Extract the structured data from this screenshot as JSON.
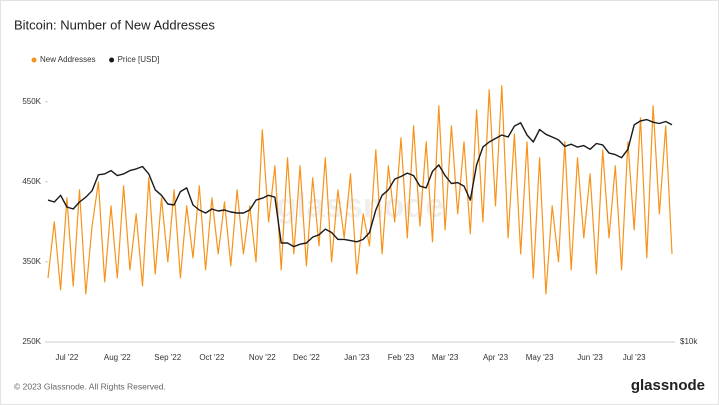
{
  "chart_data": {
    "type": "line",
    "title": "Bitcoin: Number of New Addresses",
    "watermark": "glassnode",
    "categories": [
      null,
      null,
      null,
      "Jul '22",
      null,
      null,
      null,
      null,
      null,
      null,
      null,
      "Aug '22",
      null,
      null,
      null,
      null,
      null,
      null,
      null,
      "Sep '22",
      null,
      null,
      null,
      null,
      null,
      null,
      "Oct '22",
      null,
      null,
      null,
      null,
      null,
      null,
      null,
      "Nov '22",
      null,
      null,
      null,
      null,
      null,
      null,
      "Dec '22",
      null,
      null,
      null,
      null,
      null,
      null,
      null,
      "Jan '23",
      null,
      null,
      null,
      null,
      null,
      null,
      "Feb '23",
      null,
      null,
      null,
      null,
      null,
      null,
      "Mar '23",
      null,
      null,
      null,
      null,
      null,
      null,
      null,
      "Apr '23",
      null,
      null,
      null,
      null,
      null,
      null,
      "May '23",
      null,
      null,
      null,
      null,
      null,
      null,
      null,
      "Jun '23",
      null,
      null,
      null,
      null,
      null,
      null,
      "Jul '23",
      null,
      null,
      null,
      null,
      null,
      null
    ],
    "series": [
      {
        "name": "New Addresses",
        "color": "#f7931a",
        "values": [
          330000,
          400000,
          315000,
          430000,
          320000,
          440000,
          310000,
          395000,
          450000,
          325000,
          420000,
          330000,
          445000,
          340000,
          410000,
          320000,
          455000,
          335000,
          430000,
          350000,
          440000,
          330000,
          420000,
          355000,
          445000,
          340000,
          430000,
          360000,
          425000,
          345000,
          440000,
          360000,
          420000,
          350000,
          515000,
          400000,
          470000,
          340000,
          480000,
          360000,
          470000,
          345000,
          455000,
          370000,
          480000,
          350000,
          440000,
          380000,
          460000,
          335000,
          410000,
          370000,
          490000,
          360000,
          470000,
          400000,
          505000,
          380000,
          520000,
          395000,
          500000,
          375000,
          545000,
          390000,
          520000,
          410000,
          500000,
          385000,
          540000,
          400000,
          565000,
          420000,
          570000,
          380000,
          510000,
          360000,
          500000,
          330000,
          480000,
          310000,
          420000,
          350000,
          500000,
          340000,
          480000,
          380000,
          460000,
          335000,
          490000,
          380000,
          470000,
          340000,
          500000,
          390000,
          530000,
          355000,
          545000,
          410000,
          520000,
          360000
        ]
      },
      {
        "name": "Price [USD]",
        "color": "#1a1a1a",
        "axis": "y2",
        "values": [
          20500,
          20300,
          21000,
          19800,
          19600,
          20300,
          20800,
          21500,
          23300,
          23400,
          23800,
          23200,
          23400,
          23800,
          24000,
          24300,
          23400,
          21600,
          21000,
          20100,
          20000,
          21400,
          21800,
          20000,
          19500,
          19200,
          19600,
          19400,
          19500,
          19300,
          19200,
          19200,
          19500,
          20500,
          20700,
          21000,
          20800,
          16500,
          16500,
          16200,
          16400,
          16500,
          17000,
          17200,
          17700,
          17400,
          16800,
          16800,
          16700,
          16600,
          16800,
          17400,
          19500,
          21000,
          21600,
          22800,
          23100,
          23500,
          23200,
          22000,
          21800,
          23700,
          24500,
          23200,
          22300,
          22400,
          22000,
          20500,
          24500,
          26800,
          27500,
          28000,
          28500,
          28200,
          29800,
          30300,
          28500,
          27500,
          29300,
          28600,
          28200,
          27800,
          26900,
          27200,
          26800,
          27000,
          26500,
          27300,
          27100,
          26000,
          25800,
          25400,
          26500,
          30000,
          30600,
          30800,
          30400,
          30200,
          30500,
          30000
        ]
      }
    ],
    "ylim": [
      250000,
      596000
    ],
    "yticks": [
      {
        "value": 250000,
        "label": "250K"
      },
      {
        "value": 350000,
        "label": "350K"
      },
      {
        "value": 450000,
        "label": "450K"
      },
      {
        "value": 550000,
        "label": "550K"
      }
    ],
    "y2lim": [
      10000,
      40600
    ],
    "y2ticks": [
      {
        "value": 10000,
        "label": "$10k"
      }
    ],
    "y2log": true,
    "legend": "top-left"
  },
  "footer": {
    "copyright": "© 2023 Glassnode. All Rights Reserved.",
    "logo": "glassnode"
  }
}
